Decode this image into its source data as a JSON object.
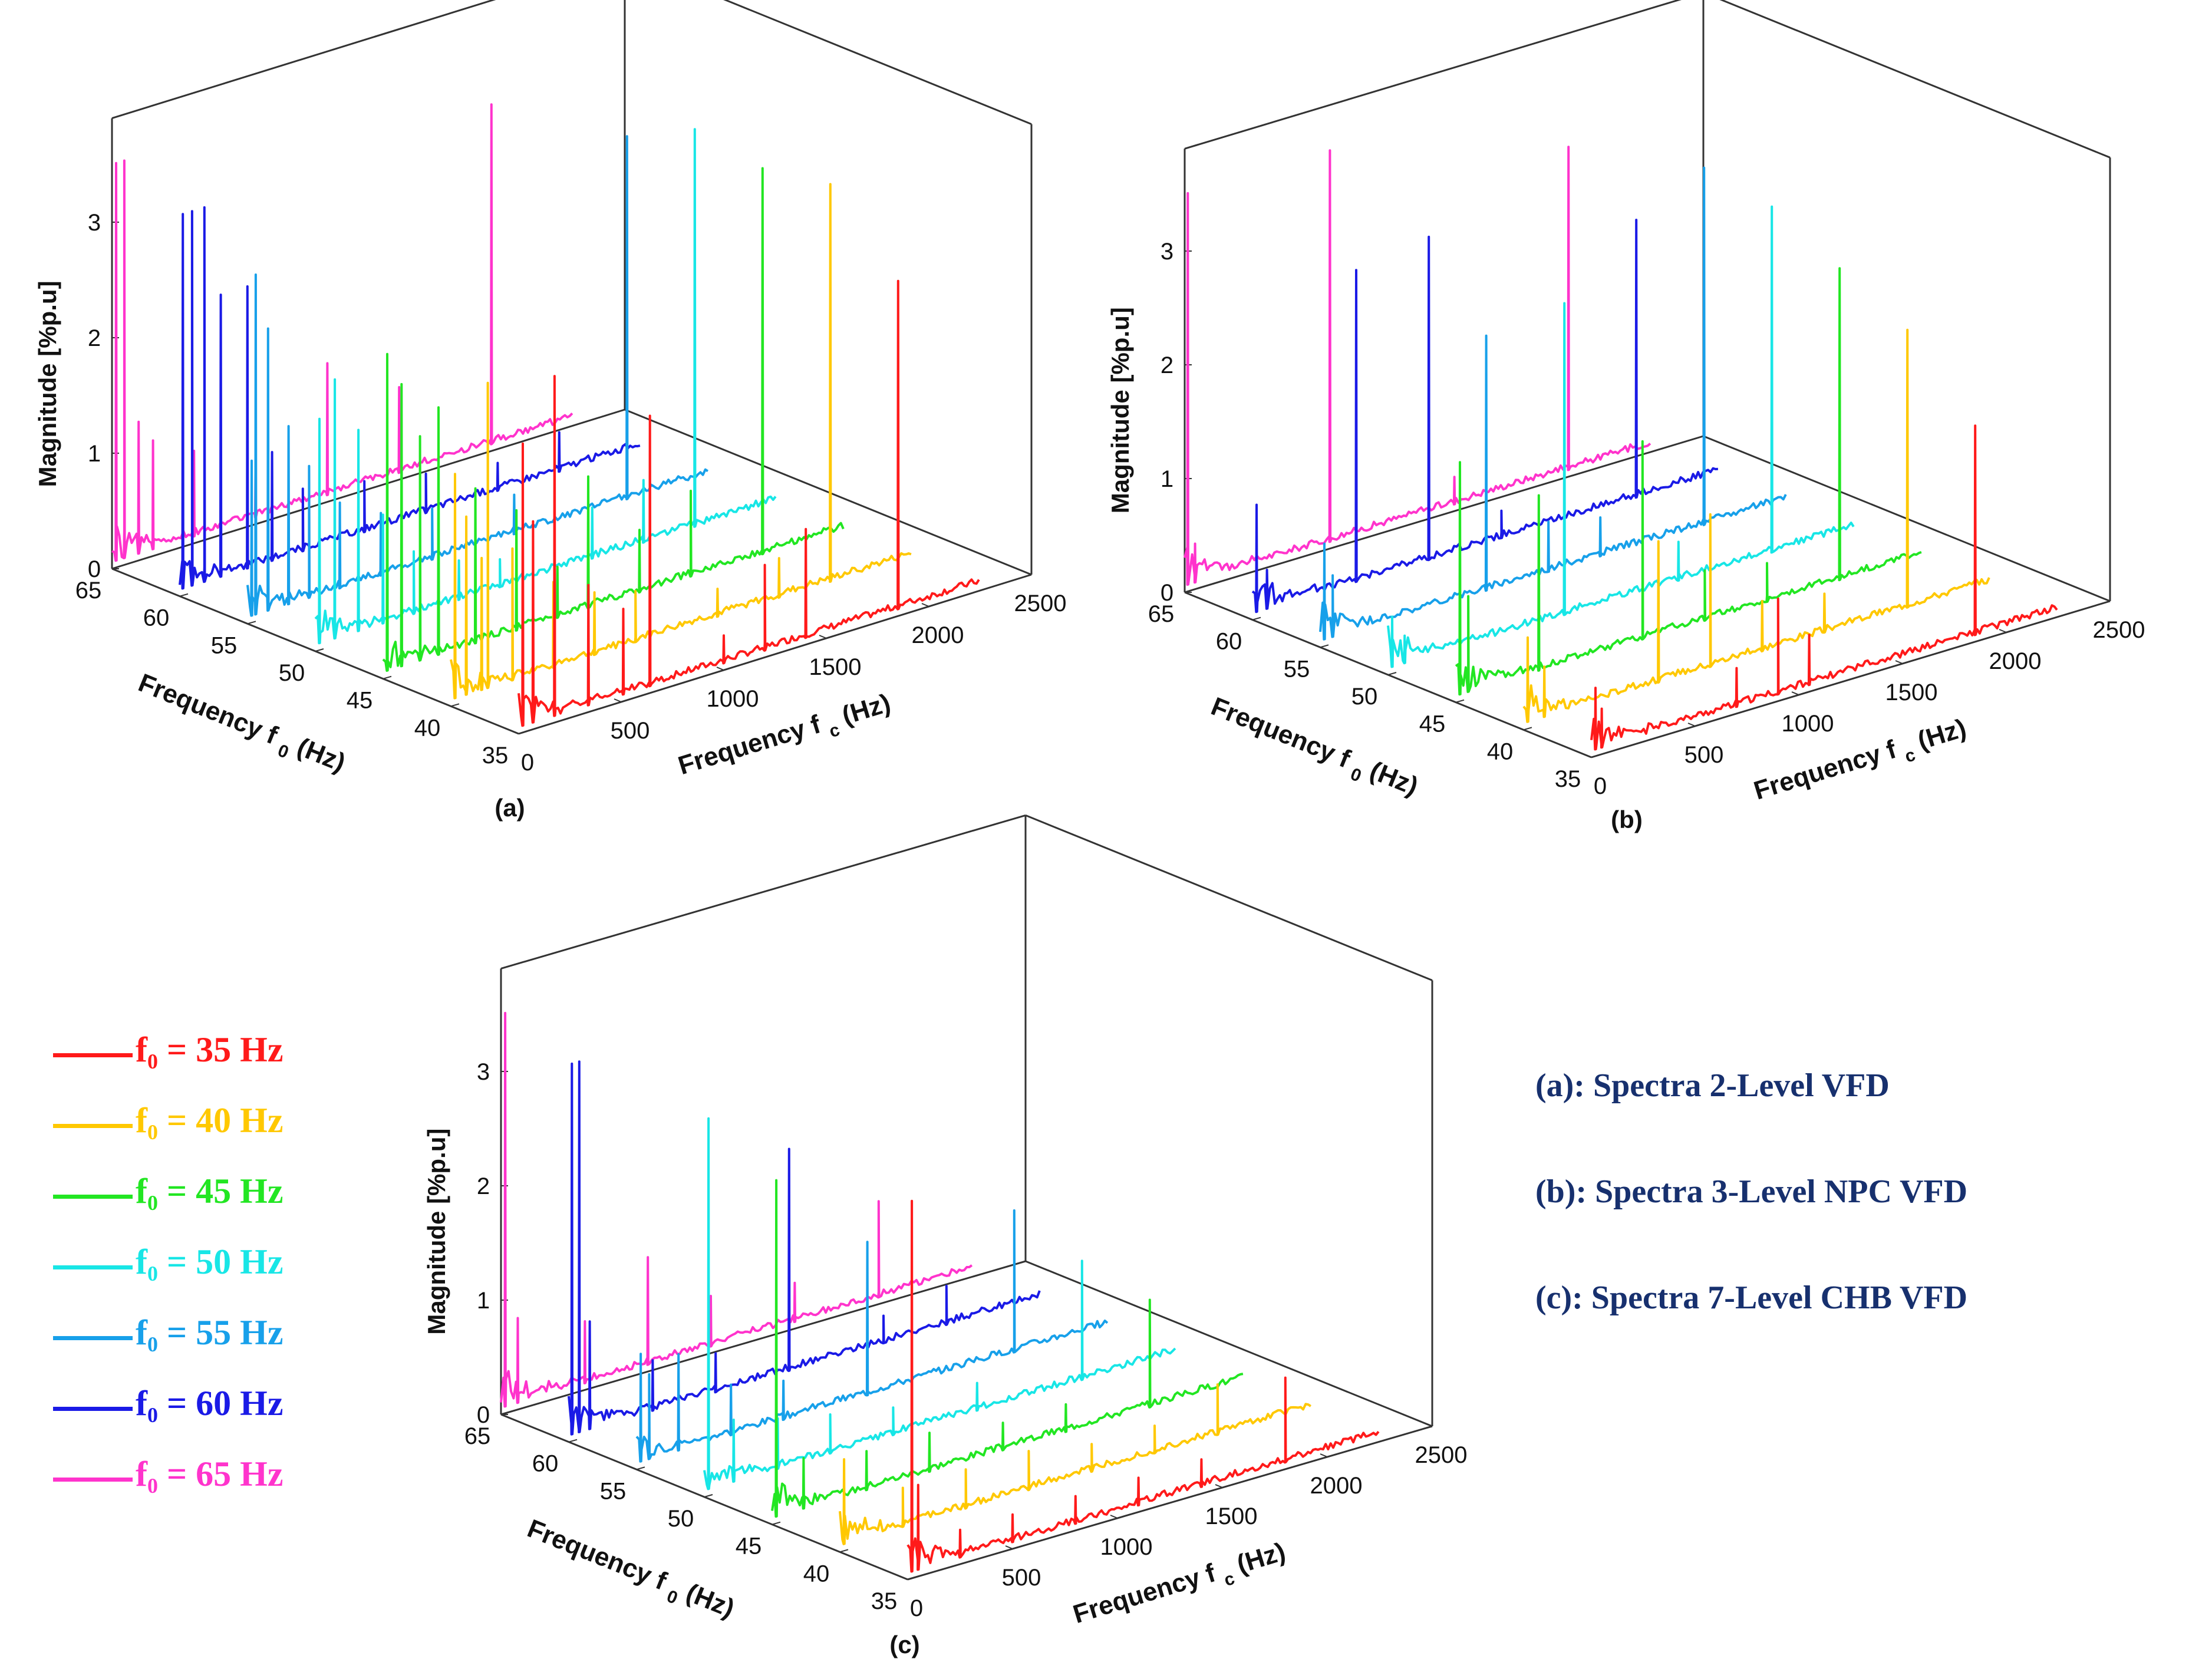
{
  "axis_text": {
    "z_label": "Magnitude [%p.u]",
    "f0_label": "Frequency f",
    "f0_sub": "0",
    "fc_label": "Frequency f",
    "fc_sub": "c",
    "unit": "(Hz)"
  },
  "legend": [
    {
      "text": "f₀ = 35 Hz",
      "color": "#ff1a1a"
    },
    {
      "text": "f₀ = 40 Hz",
      "color": "#ffc800"
    },
    {
      "text": "f₀ = 45 Hz",
      "color": "#22e622"
    },
    {
      "text": "f₀ = 50 Hz",
      "color": "#18e6e6"
    },
    {
      "text": "f₀ = 55 Hz",
      "color": "#17a0ea"
    },
    {
      "text": "f₀ = 60 Hz",
      "color": "#1a1ae6"
    },
    {
      "text": "f₀ = 65 Hz",
      "color": "#ff33cc"
    }
  ],
  "descriptions": [
    "(a): Spectra 2-Level VFD",
    "(b): Spectra 3-Level NPC VFD",
    "(c): Spectra 7-Level CHB VFD"
  ],
  "chart_data": [
    {
      "panel": "(a)",
      "type": "waterfall",
      "xlabel": "Frequency f0 (Hz)",
      "ylabel": "Frequency fc (Hz)",
      "zlabel": "Magnitude [%p.u]",
      "f0_ticks": [
        35,
        40,
        45,
        50,
        55,
        60,
        65
      ],
      "fc_ticks": [
        0,
        500,
        1000,
        1500,
        2000,
        2500
      ],
      "z_ticks": [
        0,
        1,
        2,
        3
      ],
      "zlim": [
        0,
        3.5
      ],
      "series": [
        {
          "name": "f0 = 35 Hz",
          "f0": 35,
          "color": "#ff1a1a",
          "peaks": [
            [
              20,
              2.5
            ],
            [
              70,
              1.8
            ],
            [
              175,
              3.0
            ],
            [
              340,
              1.1
            ],
            [
              510,
              0.8
            ],
            [
              640,
              2.4
            ],
            [
              1000,
              0.3
            ],
            [
              1200,
              0.8
            ],
            [
              1400,
              1.0
            ],
            [
              1850,
              2.9
            ]
          ]
        },
        {
          "name": "f0 = 40 Hz",
          "f0": 40,
          "color": "#ffc800",
          "peaks": [
            [
              20,
              2.0
            ],
            [
              75,
              1.6
            ],
            [
              150,
              1.2
            ],
            [
              180,
              2.7
            ],
            [
              300,
              1.2
            ],
            [
              500,
              0.8
            ],
            [
              700,
              0.6
            ],
            [
              900,
              0.5
            ],
            [
              1300,
              0.3
            ],
            [
              1600,
              0.4
            ],
            [
              1850,
              3.5
            ]
          ]
        },
        {
          "name": "f0 = 45 Hz",
          "f0": 45,
          "color": "#22e622",
          "peaks": [
            [
              20,
              2.8
            ],
            [
              90,
              2.5
            ],
            [
              180,
              2.0
            ],
            [
              270,
              2.2
            ],
            [
              450,
              1.4
            ],
            [
              650,
              1.1
            ],
            [
              850,
              0.5
            ],
            [
              1000,
              1.2
            ],
            [
              1250,
              0.6
            ],
            [
              1500,
              0.8
            ],
            [
              1850,
              3.4
            ]
          ]
        },
        {
          "name": "f0 = 50 Hz",
          "f0": 50,
          "color": "#18e6e6",
          "peaks": [
            [
              20,
              2.0
            ],
            [
              95,
              2.3
            ],
            [
              210,
              1.8
            ],
            [
              330,
              1.0
            ],
            [
              480,
              0.6
            ],
            [
              700,
              0.4
            ],
            [
              900,
              0.3
            ],
            [
              1350,
              0.5
            ],
            [
              1600,
              0.6
            ],
            [
              1850,
              3.5
            ]
          ]
        },
        {
          "name": "f0 = 55 Hz",
          "f0": 55,
          "color": "#17a0ea",
          "peaks": [
            [
              20,
              1.4
            ],
            [
              40,
              3.0
            ],
            [
              100,
              2.5
            ],
            [
              200,
              1.6
            ],
            [
              300,
              1.2
            ],
            [
              450,
              0.8
            ],
            [
              650,
              0.6
            ],
            [
              900,
              0.5
            ],
            [
              1300,
              0.4
            ],
            [
              1850,
              3.2
            ]
          ]
        },
        {
          "name": "f0 = 60 Hz",
          "f0": 60,
          "color": "#1a1ae6",
          "peaks": [
            [
              15,
              3.3
            ],
            [
              60,
              3.3
            ],
            [
              120,
              3.3
            ],
            [
              200,
              2.5
            ],
            [
              330,
              2.5
            ],
            [
              450,
              1.0
            ],
            [
              600,
              0.6
            ],
            [
              900,
              0.5
            ],
            [
              1200,
              0.4
            ],
            [
              1550,
              0.3
            ],
            [
              1850,
              0.4
            ]
          ]
        },
        {
          "name": "f0 = 65 Hz",
          "f0": 65,
          "color": "#ff33cc",
          "peaks": [
            [
              20,
              3.5
            ],
            [
              60,
              3.5
            ],
            [
              130,
              1.2
            ],
            [
              200,
              1.0
            ],
            [
              400,
              0.8
            ],
            [
              700,
              0.5
            ],
            [
              1050,
              1.2
            ],
            [
              1400,
              0.8
            ],
            [
              1850,
              3.0
            ]
          ]
        }
      ]
    },
    {
      "panel": "(b)",
      "type": "waterfall",
      "xlabel": "Frequency f0 (Hz)",
      "ylabel": "Frequency fc (Hz)",
      "zlabel": "Magnitude [%p.u]",
      "f0_ticks": [
        35,
        40,
        45,
        50,
        55,
        60,
        65
      ],
      "fc_ticks": [
        0,
        500,
        1000,
        1500,
        2000,
        2500
      ],
      "z_ticks": [
        0,
        1,
        2,
        3
      ],
      "zlim": [
        0,
        3.5
      ],
      "series": [
        {
          "name": "f0 = 35 Hz",
          "f0": 35,
          "color": "#ff1a1a",
          "peaks": [
            [
              20,
              0.6
            ],
            [
              50,
              0.4
            ],
            [
              700,
              0.4
            ],
            [
              900,
              0.9
            ],
            [
              1050,
              0.5
            ],
            [
              1850,
              1.9
            ]
          ]
        },
        {
          "name": "f0 = 40 Hz",
          "f0": 40,
          "color": "#ffc800",
          "peaks": [
            [
              20,
              0.8
            ],
            [
              100,
              0.5
            ],
            [
              650,
              1.3
            ],
            [
              900,
              1.4
            ],
            [
              1150,
              0.5
            ],
            [
              1450,
              0.4
            ],
            [
              1850,
              2.5
            ]
          ]
        },
        {
          "name": "f0 = 45 Hz",
          "f0": 45,
          "color": "#22e622",
          "peaks": [
            [
              20,
              2.1
            ],
            [
              60,
              0.9
            ],
            [
              400,
              1.6
            ],
            [
              900,
              1.8
            ],
            [
              1200,
              0.5
            ],
            [
              1500,
              0.4
            ],
            [
              1850,
              2.8
            ]
          ]
        },
        {
          "name": "f0 = 50 Hz",
          "f0": 50,
          "color": "#18e6e6",
          "peaks": [
            [
              20,
              0.5
            ],
            [
              80,
              0.3
            ],
            [
              850,
              2.8
            ],
            [
              1400,
              0.4
            ],
            [
              1850,
              3.1
            ]
          ]
        },
        {
          "name": "f0 = 55 Hz",
          "f0": 55,
          "color": "#17a0ea",
          "peaks": [
            [
              20,
              0.9
            ],
            [
              60,
              0.6
            ],
            [
              800,
              2.3
            ],
            [
              1100,
              0.5
            ],
            [
              1350,
              0.4
            ],
            [
              1850,
              3.2
            ]
          ]
        },
        {
          "name": "f0 = 60 Hz",
          "f0": 60,
          "color": "#1a1ae6",
          "peaks": [
            [
              20,
              1.0
            ],
            [
              70,
              0.4
            ],
            [
              500,
              2.8
            ],
            [
              850,
              2.9
            ],
            [
              1200,
              0.3
            ],
            [
              1850,
              2.5
            ]
          ]
        },
        {
          "name": "f0 = 65 Hz",
          "f0": 65,
          "color": "#ff33cc",
          "peaks": [
            [
              15,
              3.5
            ],
            [
              50,
              0.4
            ],
            [
              700,
              3.5
            ],
            [
              1300,
              0.3
            ],
            [
              1850,
              2.9
            ]
          ]
        }
      ]
    },
    {
      "panel": "(c)",
      "type": "waterfall",
      "xlabel": "Frequency f0 (Hz)",
      "ylabel": "Frequency fc (Hz)",
      "zlabel": "Magnitude [%p.u]",
      "f0_ticks": [
        35,
        40,
        45,
        50,
        55,
        60,
        65
      ],
      "fc_ticks": [
        0,
        500,
        1000,
        1500,
        2000,
        2500
      ],
      "z_ticks": [
        0,
        1,
        2,
        3
      ],
      "zlim": [
        0,
        3.5
      ],
      "series": [
        {
          "name": "f0 = 35 Hz",
          "f0": 35,
          "color": "#ff1a1a",
          "peaks": [
            [
              20,
              3.3
            ],
            [
              50,
              0.8
            ],
            [
              250,
              0.3
            ],
            [
              500,
              0.3
            ],
            [
              800,
              0.3
            ],
            [
              1100,
              0.3
            ],
            [
              1400,
              0.3
            ],
            [
              1800,
              0.8
            ]
          ]
        },
        {
          "name": "f0 = 40 Hz",
          "f0": 40,
          "color": "#ffc800",
          "peaks": [
            [
              20,
              0.8
            ],
            [
              300,
              0.4
            ],
            [
              600,
              0.4
            ],
            [
              900,
              0.4
            ],
            [
              1200,
              0.3
            ],
            [
              1500,
              0.3
            ],
            [
              1800,
              0.5
            ]
          ]
        },
        {
          "name": "f0 = 45 Hz",
          "f0": 45,
          "color": "#22e622",
          "peaks": [
            [
              20,
              3.0
            ],
            [
              150,
              0.5
            ],
            [
              450,
              0.4
            ],
            [
              750,
              0.4
            ],
            [
              1100,
              0.3
            ],
            [
              1400,
              0.3
            ],
            [
              1800,
              1.0
            ]
          ]
        },
        {
          "name": "f0 = 50 Hz",
          "f0": 50,
          "color": "#18e6e6",
          "peaks": [
            [
              20,
              3.3
            ],
            [
              140,
              0.6
            ],
            [
              350,
              0.5
            ],
            [
              600,
              0.4
            ],
            [
              900,
              0.3
            ],
            [
              1300,
              0.3
            ],
            [
              1800,
              1.1
            ]
          ]
        },
        {
          "name": "f0 = 55 Hz",
          "f0": 55,
          "color": "#17a0ea",
          "peaks": [
            [
              20,
              1.0
            ],
            [
              60,
              0.8
            ],
            [
              200,
              0.9
            ],
            [
              450,
              0.5
            ],
            [
              700,
              0.4
            ],
            [
              1100,
              1.4
            ],
            [
              1800,
              1.3
            ]
          ]
        },
        {
          "name": "f0 = 60 Hz",
          "f0": 60,
          "color": "#1a1ae6",
          "peaks": [
            [
              15,
              3.3
            ],
            [
              50,
              3.3
            ],
            [
              100,
              1.0
            ],
            [
              400,
              0.5
            ],
            [
              700,
              0.4
            ],
            [
              1050,
              2.0
            ],
            [
              1500,
              0.3
            ],
            [
              1800,
              0.4
            ]
          ]
        },
        {
          "name": "f0 = 65 Hz",
          "f0": 65,
          "color": "#ff33cc",
          "peaks": [
            [
              20,
              3.5
            ],
            [
              80,
              0.8
            ],
            [
              400,
              0.6
            ],
            [
              700,
              1.0
            ],
            [
              1000,
              0.5
            ],
            [
              1400,
              0.4
            ],
            [
              1800,
              0.9
            ]
          ]
        }
      ]
    }
  ]
}
